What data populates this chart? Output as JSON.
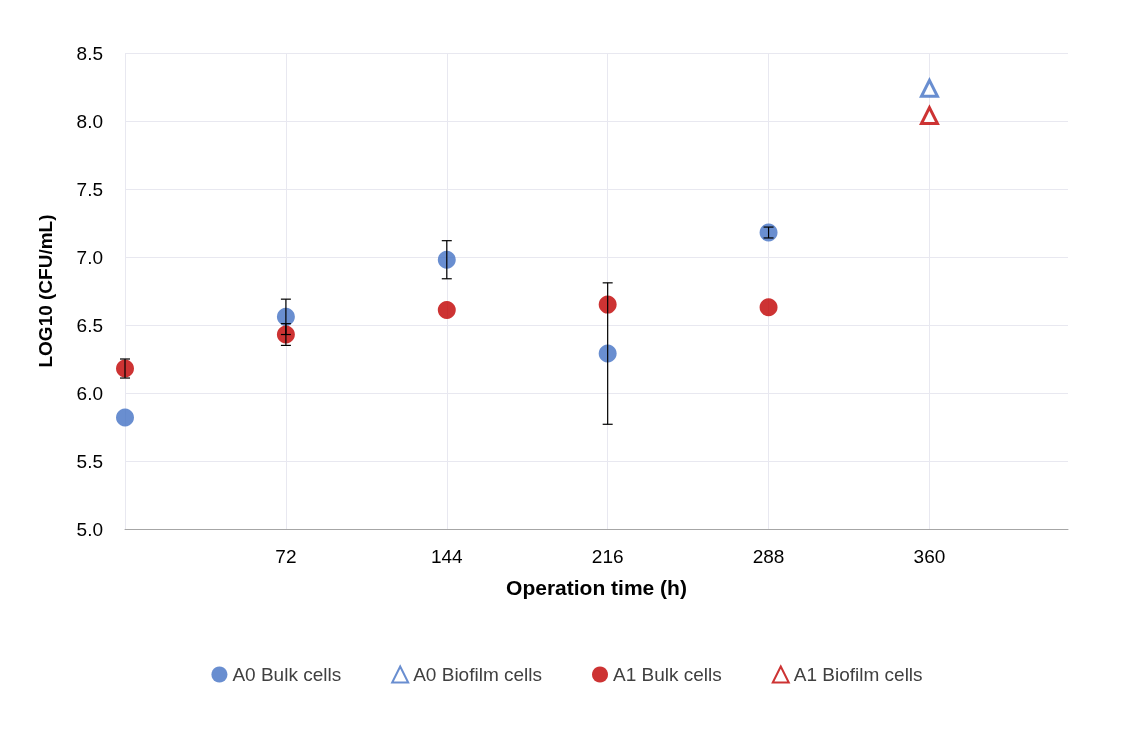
{
  "chart_data": {
    "type": "scatter",
    "xlabel": "Operation time (h)",
    "ylabel": "LOG10 (CFU/mL)",
    "xlim": [
      0,
      422
    ],
    "xticks": [
      {
        "value": 0,
        "label": null
      },
      72,
      144,
      216,
      288,
      360
    ],
    "ylim": [
      5.0,
      8.5
    ],
    "yticks": [
      {
        "value": 5,
        "label": "5.0"
      },
      5.5,
      {
        "value": 6,
        "label": "6.0"
      },
      6.5,
      {
        "value": 7,
        "label": "7.0"
      },
      7.5,
      {
        "value": 8,
        "label": "8.0"
      },
      8.5
    ],
    "grid": true,
    "legend": "bottom",
    "series": [
      {
        "name": "A0 Bulk cells",
        "color": "#4472c4",
        "marker": "circle",
        "x": [
          0,
          72,
          144,
          216,
          288
        ],
        "values": [
          5.82,
          6.56,
          6.98,
          6.29,
          7.18
        ],
        "errors": [
          null,
          0.13,
          0.14,
          0.52,
          0.04
        ]
      },
      {
        "name": "A0 Biofilm cells",
        "color": "#4472c4",
        "marker": "triangle",
        "x": [
          360
        ],
        "values": [
          8.24
        ]
      },
      {
        "name": "A1 Bulk cells",
        "color": "#c00000",
        "marker": "circle",
        "x": [
          0,
          72,
          144,
          216,
          288
        ],
        "values": [
          6.18,
          6.43,
          6.61,
          6.65,
          6.63
        ],
        "errors": [
          0.07,
          0.08,
          null,
          null,
          null
        ]
      },
      {
        "name": "A1 Biofilm cells",
        "color": "#c00000",
        "marker": "triangle",
        "x": [
          360
        ],
        "values": [
          8.04
        ]
      }
    ]
  }
}
